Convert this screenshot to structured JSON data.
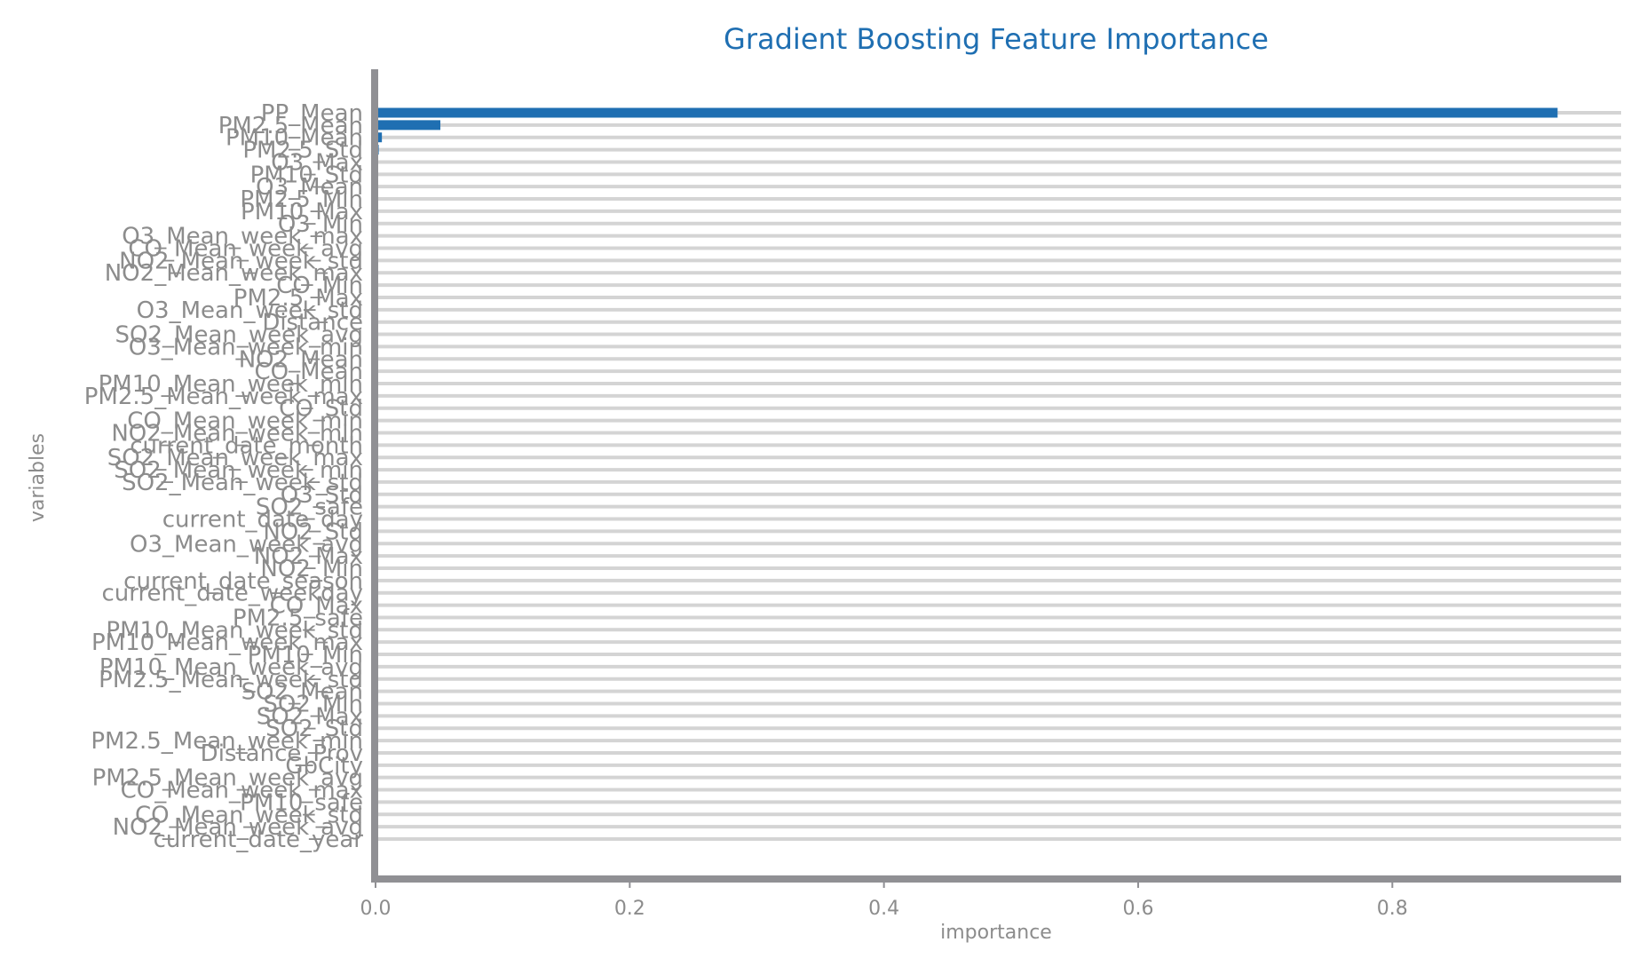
{
  "chart_data": {
    "type": "bar",
    "orientation": "horizontal",
    "title": "Gradient Boosting Feature Importance",
    "xlabel": "importance",
    "ylabel": "variables",
    "xlim": [
      0,
      0.98
    ],
    "xticks": [
      "0.0",
      "0.2",
      "0.4",
      "0.6",
      "0.8"
    ],
    "xtick_values": [
      0,
      0.2,
      0.4,
      0.6,
      0.8
    ],
    "grid": "horizontal",
    "colors": {
      "bar": "#1f6fb2",
      "grid": "#d4d4d4",
      "axis": "#909094",
      "text": "#8c8c8c",
      "title": "#1f6fb2"
    },
    "categories": [
      "PP_Mean",
      "PM2.5_Mean",
      "PM10_Mean",
      "PM2.5_Std",
      "O3_Max",
      "PM10_Std",
      "O3_Mean",
      "PM2.5_Min",
      "PM10_Max",
      "O3_Min",
      "O3_Mean_week_max",
      "CO_Mean_week_avg",
      "NO2_Mean_week_std",
      "NO2_Mean_week_max",
      "CO_Min",
      "PM2.5_Max",
      "O3_Mean_week_std",
      "Distance",
      "SO2_Mean_week_avg",
      "O3_Mean_week_min",
      "NO2_Mean",
      "CO_Mean",
      "PM10_Mean_week_min",
      "PM2.5_Mean_week_max",
      "CO_Std",
      "CO_Mean_week_min",
      "NO2_Mean_week_min",
      "current_date_month",
      "SO2_Mean_week_max",
      "SO2_Mean_week_min",
      "SO2_Mean_week_std",
      "O3_Std",
      "SO2_safe",
      "current_date_day",
      "NO2_Std",
      "O3_Mean_week_avg",
      "NO2_Max",
      "NO2_Min",
      "current_date_season",
      "current_date_weekday",
      "CO_Max",
      "PM2.5_safe",
      "PM10_Mean_week_std",
      "PM10_Mean_week_max",
      "PM10_Min",
      "PM10_Mean_week_avg",
      "PM2.5_Mean_week_std",
      "SO2_Mean",
      "SO2_Min",
      "SO2_Max",
      "SO2_Std",
      "PM2.5_Mean_week_min",
      "Distance_Prov",
      "GbCity",
      "PM2.5_Mean_week_avg",
      "CO_Mean_week_max",
      "PM10_safe",
      "CO_Mean_week_std",
      "NO2_Mean_week_avg",
      "current_date_year"
    ],
    "values": [
      0.93,
      0.051,
      0.005,
      0.0025,
      0.001,
      0.001,
      0.001,
      0.001,
      0.001,
      0.001,
      0.001,
      0.001,
      0.001,
      0.001,
      0.001,
      0.001,
      0.001,
      0.001,
      0.001,
      0.001,
      0.001,
      0.001,
      0.001,
      0.001,
      0.001,
      0.001,
      0.001,
      0.001,
      0.001,
      0.001,
      0.001,
      0.001,
      0.001,
      0.001,
      0.001,
      0.001,
      0.001,
      0.001,
      0.001,
      0.001,
      0.001,
      0.001,
      0.001,
      0.001,
      0.001,
      0.001,
      0.001,
      0.001,
      0.001,
      0.001,
      0.001,
      0.001,
      0.001,
      0.001,
      0.001,
      0.001,
      0.001,
      0.001,
      0.001,
      0.001
    ]
  }
}
